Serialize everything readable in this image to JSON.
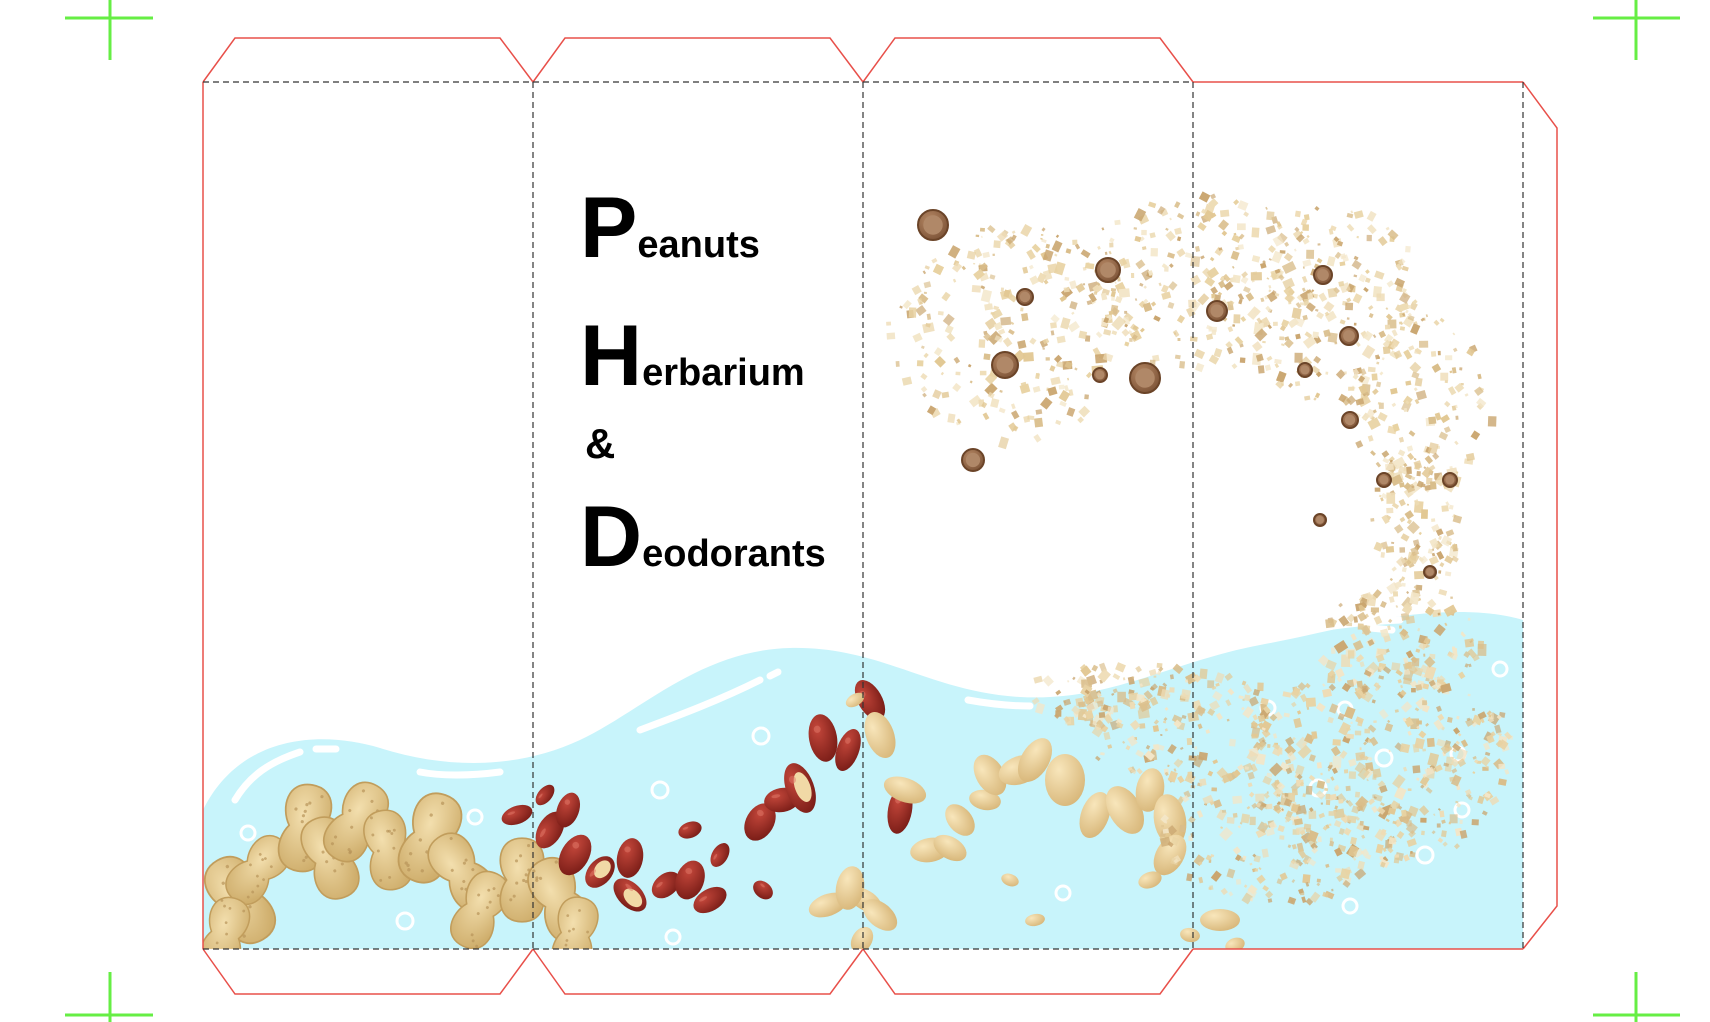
{
  "title": {
    "line1": {
      "initial": "P",
      "rest": "eanuts"
    },
    "line2": {
      "initial": "H",
      "rest": "erbarium"
    },
    "line3": {
      "text": "&"
    },
    "line4": {
      "initial": "D",
      "rest": "eodorants"
    }
  },
  "colors": {
    "cut_line": "#e8504a",
    "fold_line": "#333333",
    "crop_mark": "#66ee44",
    "water": "#c8f4fb",
    "water_highlight": "#ffffff",
    "peanut_shell": "#e3c98d",
    "red_skin_peanut": "#9b2a22",
    "blanched_peanut": "#ecd39a",
    "powder": "#e9d6ad",
    "dark_granule": "#9c6e4d"
  },
  "icons": [
    "crop-mark-icon",
    "peanut-in-shell-icon",
    "red-skin-peanut-icon",
    "blanched-peanut-icon",
    "powder-particle-icon",
    "bubble-icon"
  ]
}
